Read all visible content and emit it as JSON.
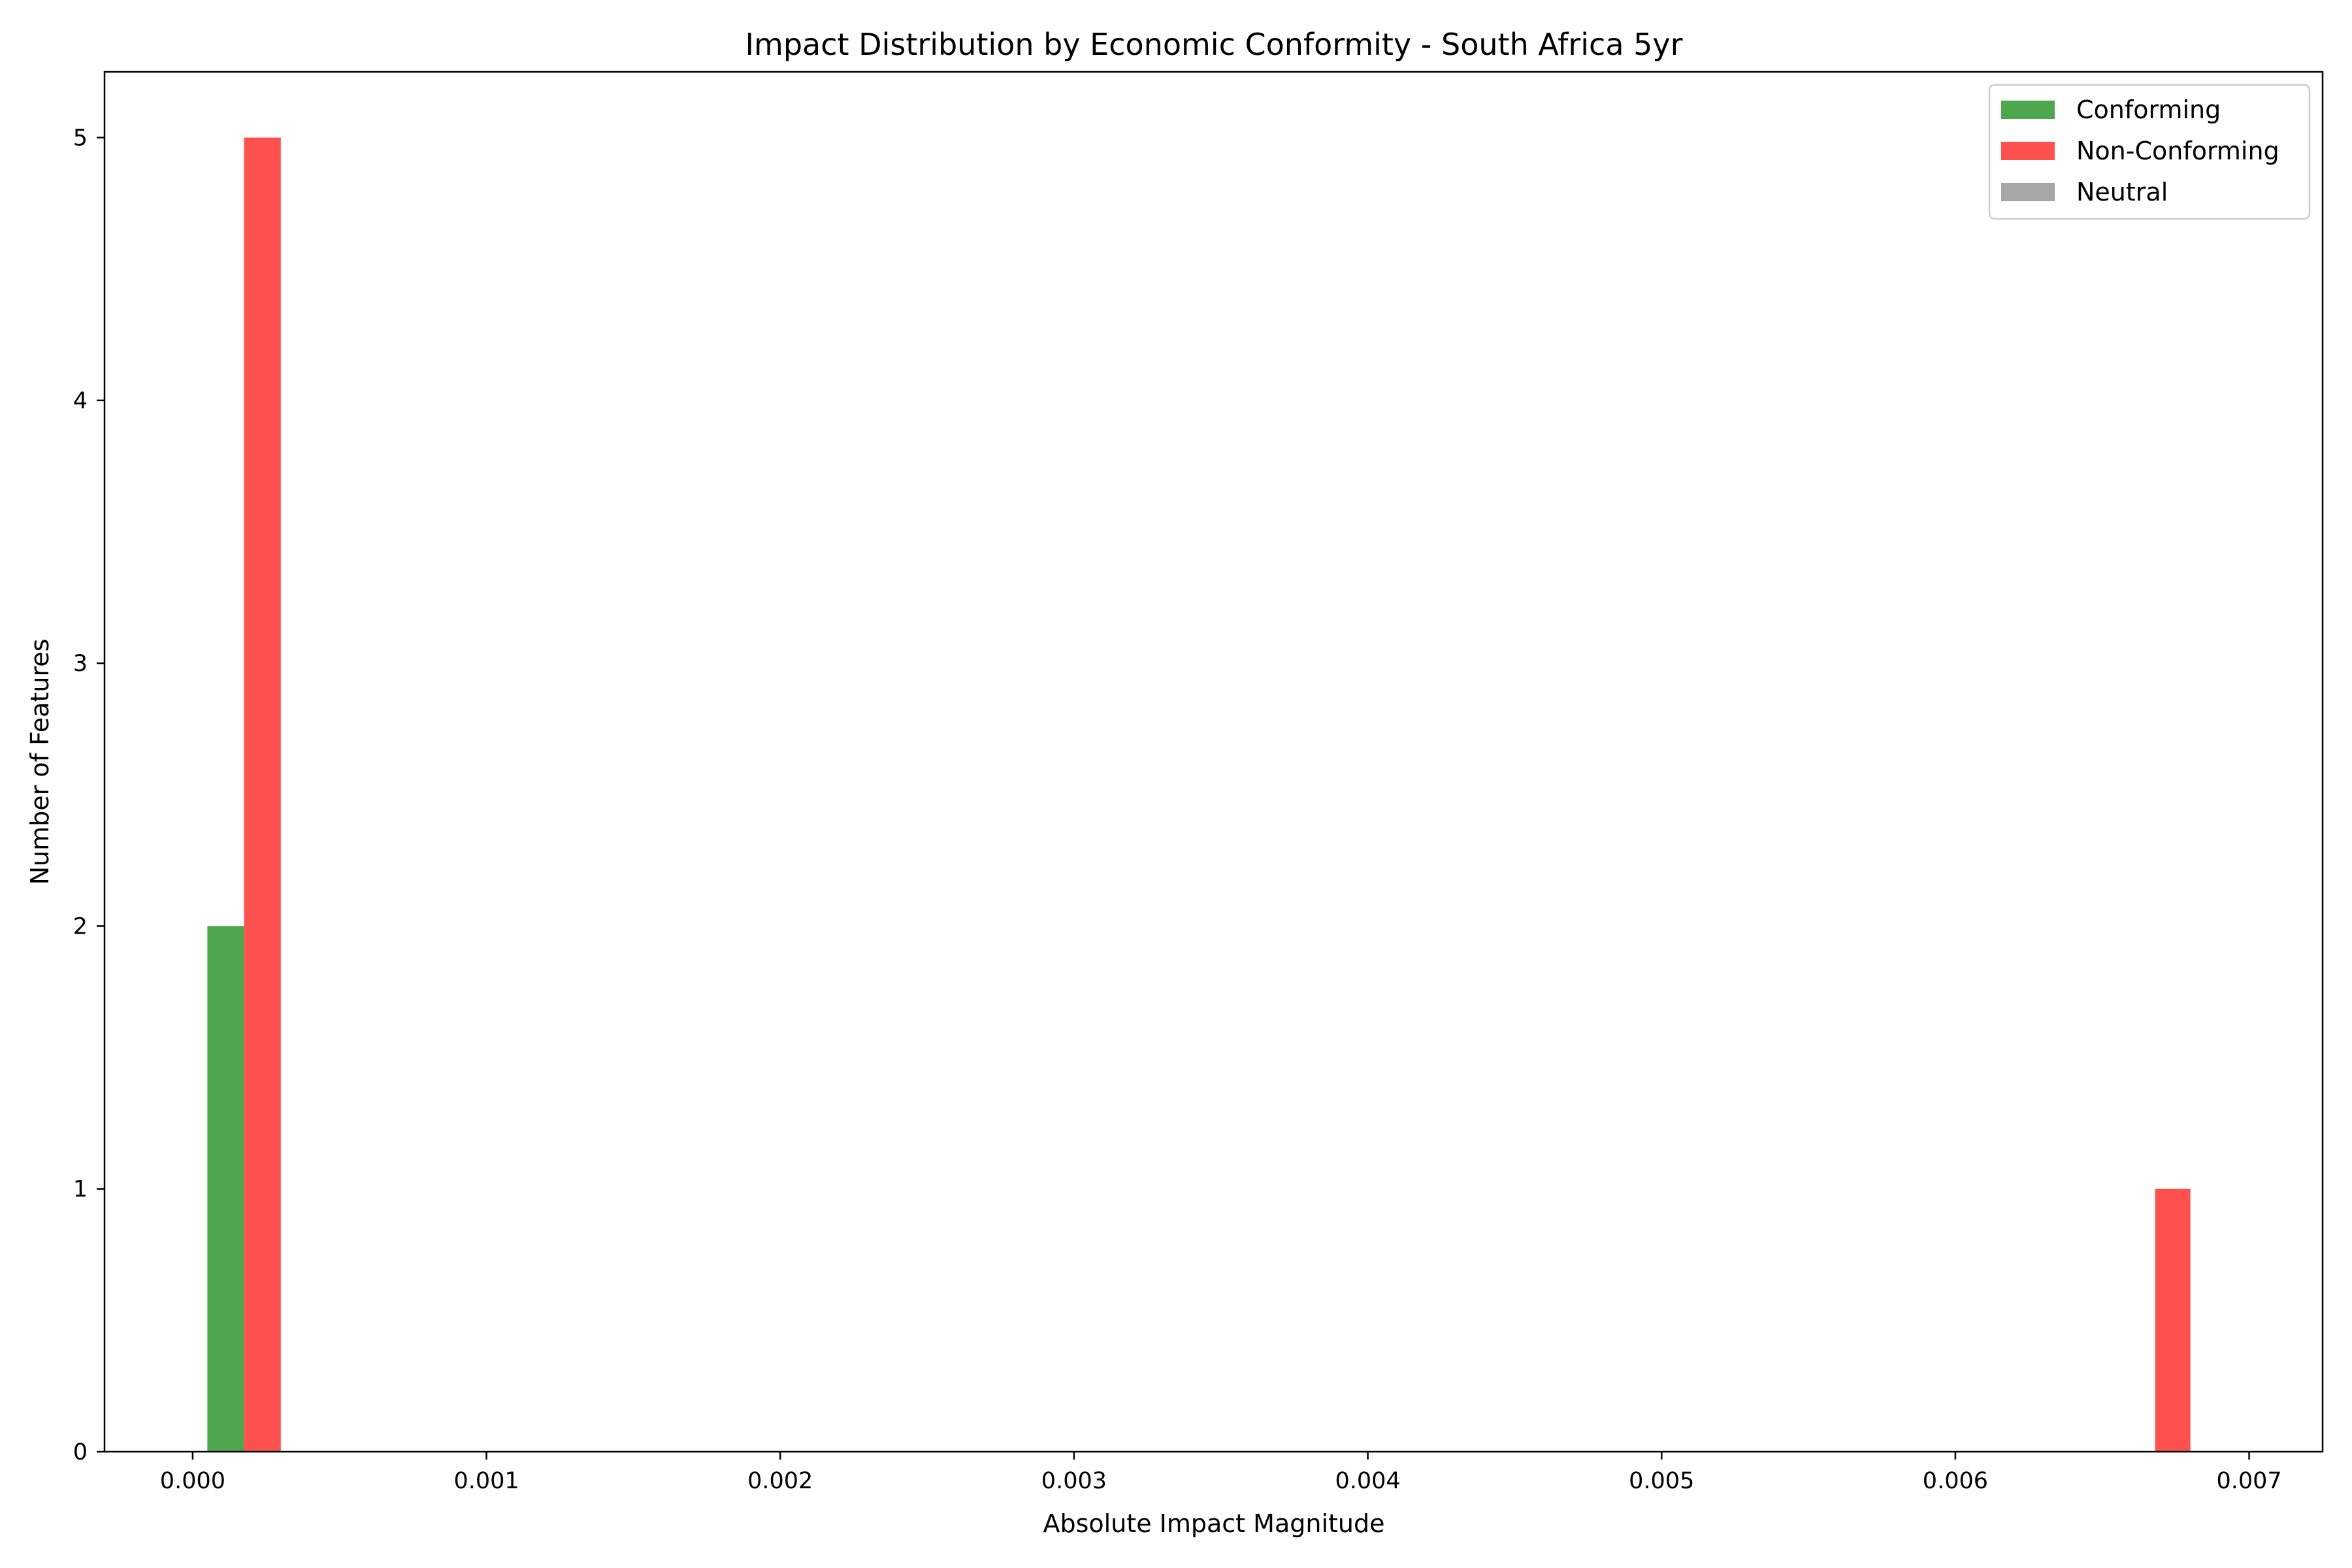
{
  "chart_data": {
    "type": "bar",
    "title": "Impact Distribution by Economic Conformity - South Africa 5yr",
    "xlabel": "Absolute Impact Magnitude",
    "ylabel": "Number of Features",
    "xlim": [
      -0.0003,
      0.00725
    ],
    "ylim": [
      0,
      5.25
    ],
    "xticks": [
      0.0,
      0.001,
      0.002,
      0.003,
      0.004,
      0.005,
      0.006,
      0.007
    ],
    "xtick_labels": [
      "0.000",
      "0.001",
      "0.002",
      "0.003",
      "0.004",
      "0.005",
      "0.006",
      "0.007"
    ],
    "yticks": [
      0,
      1,
      2,
      3,
      4,
      5
    ],
    "ytick_labels": [
      "0",
      "1",
      "2",
      "3",
      "4",
      "5"
    ],
    "grid": false,
    "legend_position": "top-right",
    "series": [
      {
        "name": "Conforming",
        "color": "#4ea64e",
        "bars": [
          {
            "x0": 5e-05,
            "x1": 0.000175,
            "value": 2
          }
        ]
      },
      {
        "name": "Non-Conforming",
        "color": "#ff5050",
        "bars": [
          {
            "x0": 0.000175,
            "x1": 0.0003,
            "value": 5
          },
          {
            "x0": 0.00668,
            "x1": 0.0068,
            "value": 1
          }
        ]
      },
      {
        "name": "Neutral",
        "color": "#a6a6a6",
        "bars": []
      }
    ]
  }
}
